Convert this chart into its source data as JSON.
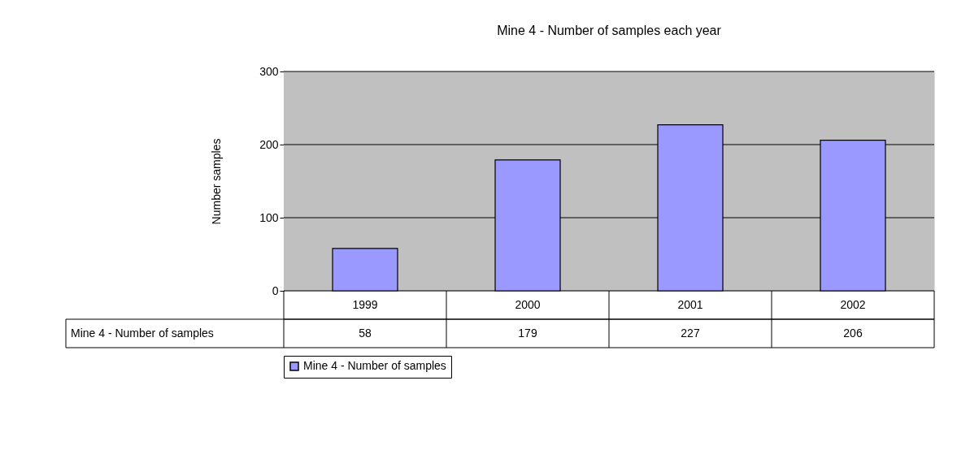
{
  "chart_data": {
    "type": "bar",
    "title": "Mine 4 - Number of samples each year",
    "ylabel": "Number samples",
    "categories": [
      "1999",
      "2000",
      "2001",
      "2002"
    ],
    "series": [
      {
        "name": "Mine 4 - Number of samples",
        "color": "#9999ff",
        "values": [
          58,
          179,
          227,
          206
        ]
      }
    ],
    "ylim": [
      0,
      300
    ],
    "yticks": [
      0,
      100,
      200,
      300
    ],
    "grid": "y",
    "legend": "bottom",
    "data_labels": true
  }
}
